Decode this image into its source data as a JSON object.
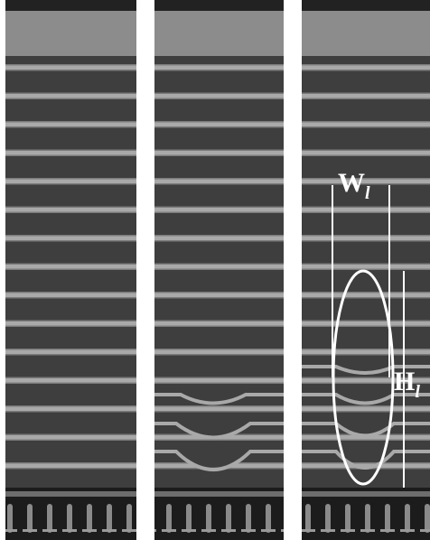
{
  "annotations": {
    "width_label": {
      "main": "W",
      "sub": "l"
    },
    "height_label": {
      "main": "H",
      "sub": "l"
    }
  }
}
